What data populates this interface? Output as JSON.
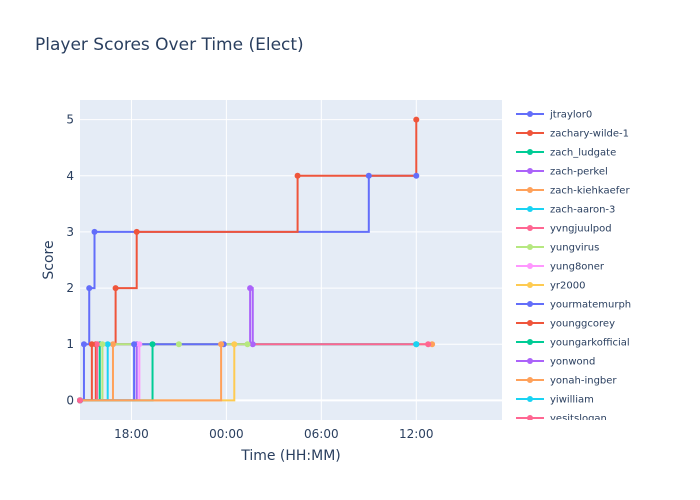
{
  "chart_data": {
    "type": "line",
    "line_shape": "step",
    "title": "Player Scores Over Time (Elect)",
    "xlabel": "Time (HH:MM)",
    "ylabel": "Score",
    "x_ticks": [
      {
        "value": "18:00",
        "label": "18:00"
      },
      {
        "value": "24:00",
        "label": "00:00"
      },
      {
        "value": "30:00",
        "label": "06:00"
      },
      {
        "value": "36:00",
        "label": "12:00"
      }
    ],
    "xlim": [
      "14:45",
      "41:25"
    ],
    "ylim": [
      -0.35,
      5.35
    ],
    "y_ticks": [
      0,
      1,
      2,
      3,
      4,
      5
    ],
    "grid": true,
    "legend_position": "right",
    "series": [
      {
        "name": "jtraylor0",
        "color": "#636efa",
        "points": [
          [
            "14:45",
            0
          ],
          [
            "15:00",
            1
          ],
          [
            "15:20",
            2
          ],
          [
            "15:40",
            3
          ],
          [
            "33:00",
            4
          ],
          [
            "36:00",
            4
          ]
        ]
      },
      {
        "name": "zachary-wilde-1",
        "color": "#ef553b",
        "points": [
          [
            "14:45",
            0
          ],
          [
            "15:45",
            1
          ],
          [
            "17:00",
            2
          ],
          [
            "18:20",
            3
          ],
          [
            "28:30",
            4
          ],
          [
            "36:00",
            5
          ]
        ]
      },
      {
        "name": "zach_ludgate",
        "color": "#00cc96",
        "points": [
          [
            "14:45",
            0
          ],
          [
            "16:00",
            1
          ],
          [
            "36:00",
            1
          ]
        ]
      },
      {
        "name": "zach-perkel",
        "color": "#ab63fa",
        "points": [
          [
            "14:45",
            0
          ],
          [
            "18:20",
            1
          ],
          [
            "25:30",
            2
          ],
          [
            "25:40",
            1
          ]
        ]
      },
      {
        "name": "zach-kiehkaefer",
        "color": "#ffa15a",
        "points": [
          [
            "14:45",
            0
          ],
          [
            "16:50",
            1
          ],
          [
            "37:00",
            1
          ]
        ]
      },
      {
        "name": "zach-aaron-3",
        "color": "#19d3f3",
        "points": [
          [
            "14:45",
            0
          ],
          [
            "16:30",
            1
          ],
          [
            "36:00",
            1
          ]
        ]
      },
      {
        "name": "yvngjuulpod",
        "color": "#ff6692",
        "points": [
          [
            "14:45",
            0
          ],
          [
            "15:50",
            1
          ],
          [
            "36:45",
            1
          ]
        ]
      },
      {
        "name": "yungvirus",
        "color": "#b6e880",
        "points": [
          [
            "14:45",
            0
          ],
          [
            "16:10",
            1
          ],
          [
            "21:00",
            1
          ],
          [
            "25:20",
            1
          ]
        ]
      },
      {
        "name": "yung8oner",
        "color": "#ff97ff",
        "points": [
          [
            "14:45",
            0
          ],
          [
            "18:30",
            1
          ]
        ]
      },
      {
        "name": "yr2000",
        "color": "#fecb52",
        "points": [
          [
            "14:45",
            0
          ],
          [
            "24:30",
            1
          ]
        ]
      },
      {
        "name": "yourmatemurph",
        "color": "#636efa",
        "points": [
          [
            "14:45",
            0
          ],
          [
            "18:10",
            1
          ],
          [
            "23:50",
            1
          ]
        ]
      },
      {
        "name": "younggcorey",
        "color": "#ef553b",
        "points": [
          [
            "14:45",
            0
          ],
          [
            "15:30",
            1
          ]
        ]
      },
      {
        "name": "youngarkofficial",
        "color": "#00cc96",
        "points": [
          [
            "14:45",
            0
          ],
          [
            "19:20",
            1
          ]
        ]
      },
      {
        "name": "yonwond",
        "color": "#ab63fa",
        "points": [
          [
            "14:45",
            0
          ]
        ]
      },
      {
        "name": "yonah-ingber",
        "color": "#ffa15a",
        "points": [
          [
            "14:45",
            0
          ],
          [
            "23:40",
            1
          ]
        ]
      },
      {
        "name": "yiwilliam",
        "color": "#19d3f3",
        "points": [
          [
            "14:45",
            0
          ]
        ]
      },
      {
        "name": "yesitslogan",
        "color": "#ff6692",
        "points": [
          [
            "14:45",
            0
          ]
        ]
      }
    ]
  }
}
